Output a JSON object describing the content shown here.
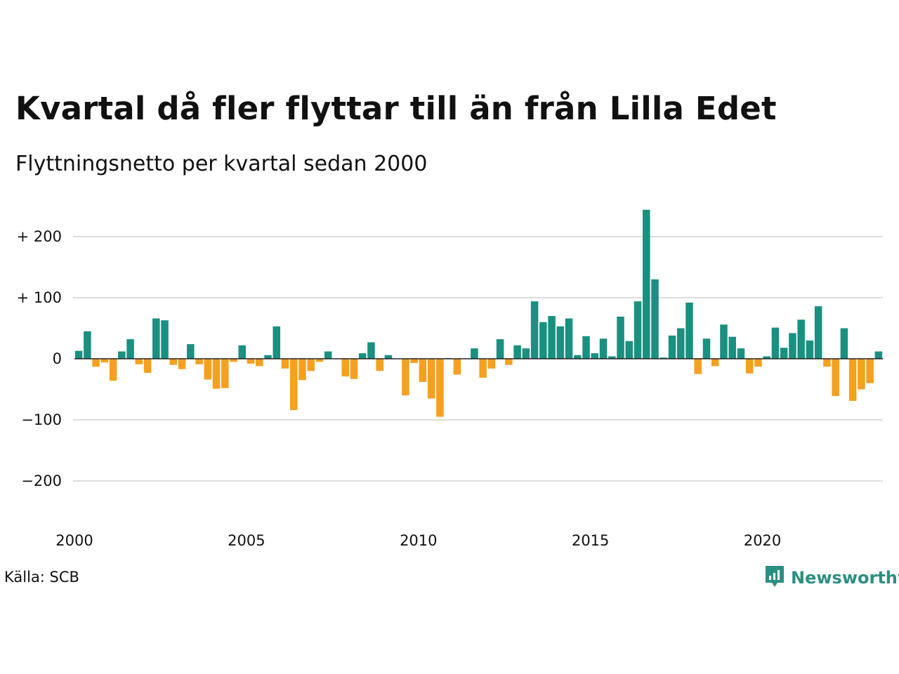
{
  "title": "Kvartal då fler flyttar till än från Lilla Edet",
  "subtitle": "Flyttningsnetto per kvartal sedan 2000",
  "source": "Källa: SCB",
  "brand": {
    "name": "Newsworthy",
    "icon": "newsworthy-logo-icon"
  },
  "colors": {
    "positive": "#1a9080",
    "negative": "#f5a01f",
    "grid": "#dddddd",
    "baseline": "#222222",
    "brand": "#2c8f82"
  },
  "chart_data": {
    "type": "bar",
    "title": "Kvartal då fler flyttar till än från Lilla Edet",
    "subtitle": "Flyttningsnetto per kvartal sedan 2000",
    "xlabel": "",
    "ylabel": "",
    "ylim": [
      -260,
      245
    ],
    "grid": true,
    "yticks": [
      200,
      100,
      0,
      -100,
      -200
    ],
    "ytick_labels": [
      "+ 200",
      "+ 100",
      "0",
      "−100",
      "−200"
    ],
    "xticks": [
      2000,
      2005,
      2010,
      2015,
      2020
    ],
    "xtick_labels": [
      "2000",
      "2005",
      "2010",
      "2015",
      "2020"
    ],
    "start_year": 2000,
    "values": [
      13,
      45,
      -13,
      -6,
      -36,
      12,
      32,
      -9,
      -23,
      66,
      63,
      -10,
      -17,
      24,
      -9,
      -34,
      -49,
      -48,
      -5,
      22,
      -8,
      -12,
      6,
      53,
      -16,
      -84,
      -35,
      -20,
      -5,
      12,
      0,
      -29,
      -33,
      9,
      27,
      -20,
      6,
      0,
      -60,
      -7,
      -38,
      -65,
      -95,
      1,
      -26,
      0,
      17,
      -31,
      -16,
      32,
      -10,
      22,
      17,
      94,
      60,
      70,
      53,
      66,
      6,
      37,
      9,
      33,
      4,
      69,
      29,
      94,
      244,
      130,
      2,
      38,
      50,
      92,
      -25,
      33,
      -12,
      56,
      36,
      17,
      -24,
      -13,
      4,
      51,
      18,
      42,
      64,
      30,
      86,
      -13,
      -61,
      50,
      -69,
      -50,
      -40,
      12
    ]
  }
}
